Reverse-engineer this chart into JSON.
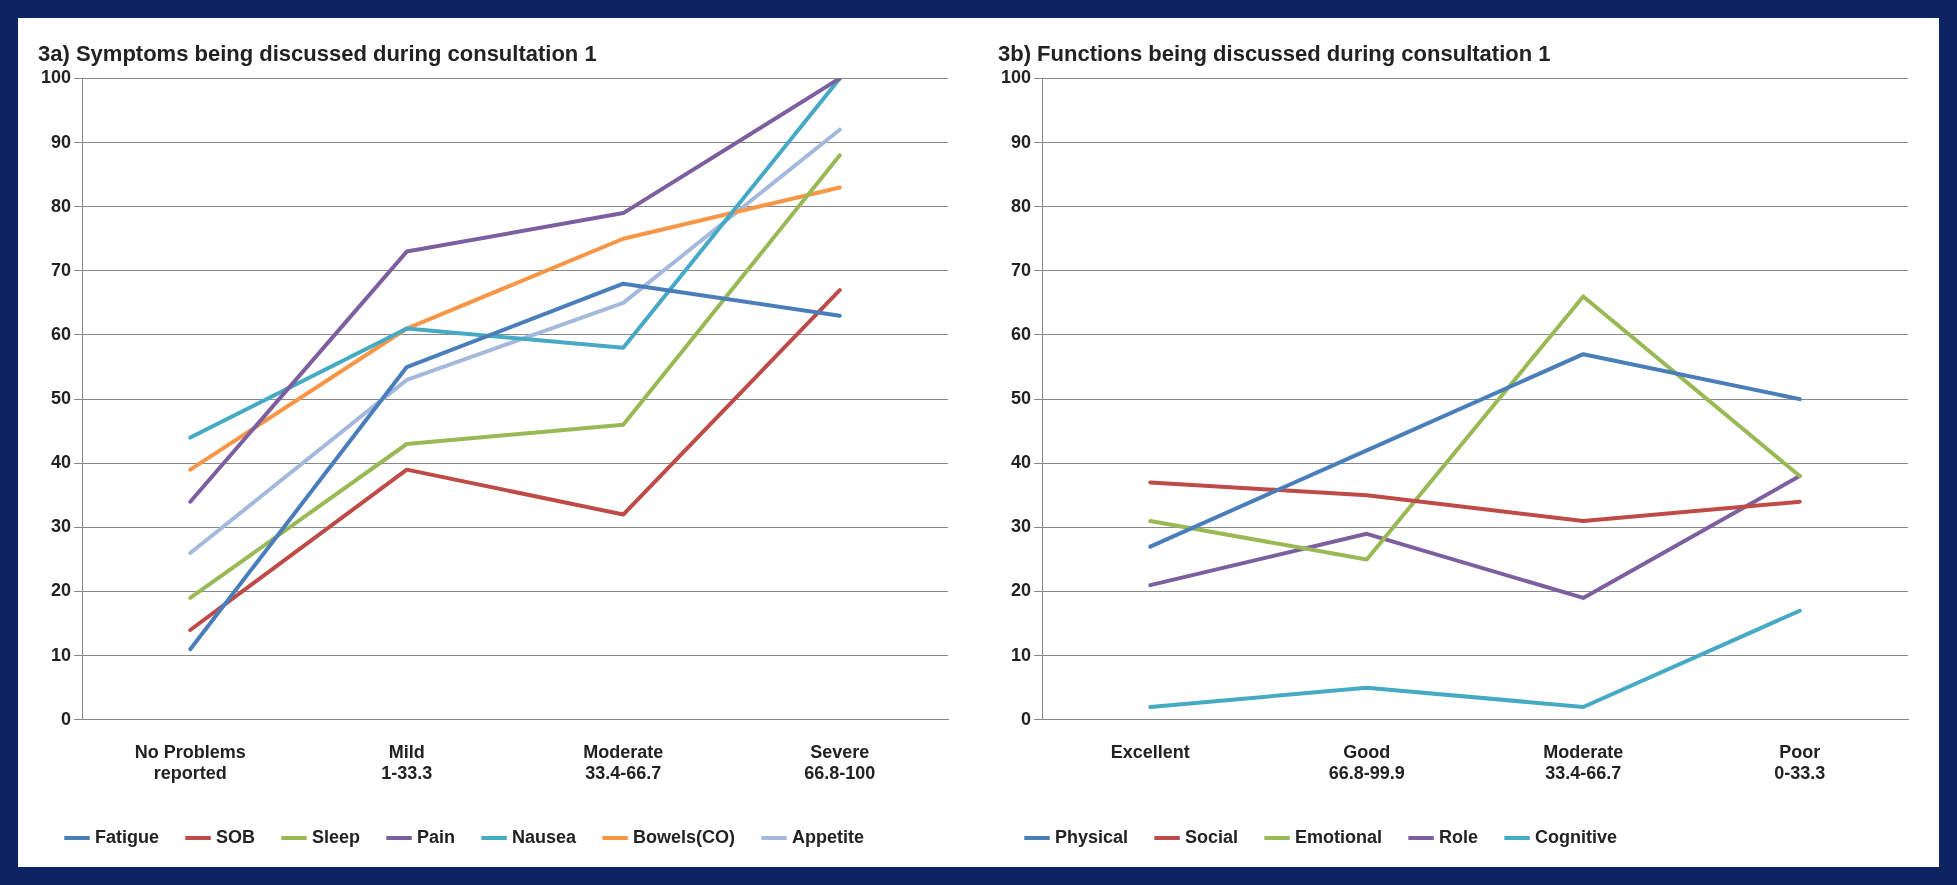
{
  "chart_data": [
    {
      "type": "line",
      "title": "3a) Symptoms being discussed during consultation 1",
      "categories": [
        "No Problems\nreported",
        "Mild\n1-33.3",
        "Moderate\n33.4-66.7",
        "Severe\n66.8-100"
      ],
      "series": [
        {
          "name": "Fatigue",
          "color": "#4a7ebb",
          "values": [
            11,
            55,
            68,
            63
          ]
        },
        {
          "name": "SOB",
          "color": "#be4b48",
          "values": [
            14,
            39,
            32,
            67
          ]
        },
        {
          "name": "Sleep",
          "color": "#98b954",
          "values": [
            19,
            43,
            46,
            88
          ]
        },
        {
          "name": "Pain",
          "color": "#7d5fa0",
          "values": [
            34,
            73,
            79,
            100
          ]
        },
        {
          "name": "Nausea",
          "color": "#46aac5",
          "values": [
            44,
            61,
            58,
            100
          ]
        },
        {
          "name": "Bowels(CO)",
          "color": "#f79646",
          "values": [
            39,
            61,
            75,
            83
          ]
        },
        {
          "name": "Appetite",
          "color": "#a5b9dc",
          "values": [
            26,
            53,
            65,
            92
          ]
        }
      ],
      "ylim": [
        0,
        100
      ],
      "yticks": [
        0,
        10,
        20,
        30,
        40,
        50,
        60,
        70,
        80,
        90,
        100
      ],
      "grid": "y",
      "legend": "bottom",
      "marker": "none",
      "line_style": "solid"
    },
    {
      "type": "line",
      "title": "3b) Functions being discussed during consultation 1",
      "categories": [
        "Excellent",
        "Good\n66.8-99.9",
        "Moderate\n33.4-66.7",
        "Poor\n0-33.3"
      ],
      "series": [
        {
          "name": "Physical",
          "color": "#4a7ebb",
          "values": [
            27,
            42,
            57,
            50
          ]
        },
        {
          "name": "Social",
          "color": "#be4b48",
          "values": [
            37,
            35,
            31,
            34
          ]
        },
        {
          "name": "Emotional",
          "color": "#98b954",
          "values": [
            31,
            25,
            66,
            38
          ]
        },
        {
          "name": "Role",
          "color": "#7d5fa0",
          "values": [
            21,
            29,
            19,
            38
          ]
        },
        {
          "name": "Cognitive",
          "color": "#46aac5",
          "values": [
            2,
            5,
            2,
            17
          ]
        }
      ],
      "ylim": [
        0,
        100
      ],
      "yticks": [
        0,
        10,
        20,
        30,
        40,
        50,
        60,
        70,
        80,
        90,
        100
      ],
      "grid": "y",
      "legend": "bottom",
      "marker": "none",
      "line_style": "solid"
    }
  ]
}
